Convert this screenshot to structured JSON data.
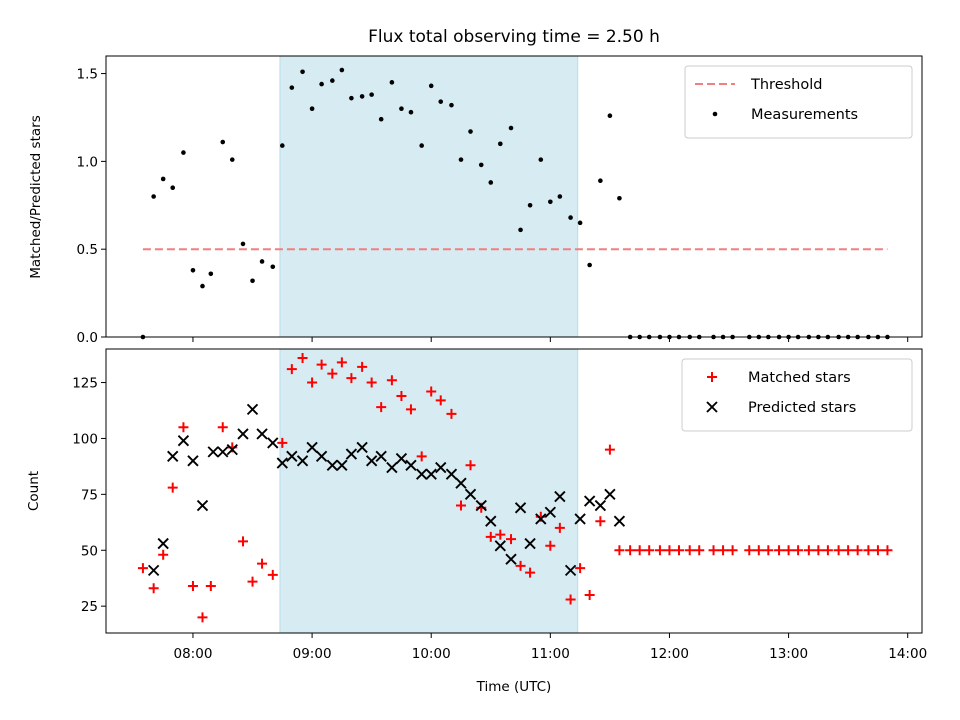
{
  "chart_data": [
    {
      "type": "scatter",
      "title": "Flux total observing time = 2.50 h",
      "xlabel": "",
      "ylabel": "Matched/Predicted stars",
      "xlim": [
        7.27,
        14.12
      ],
      "ylim": [
        0,
        1.6
      ],
      "yticks": [
        0,
        0.5,
        1.0,
        1.5
      ],
      "ytick_labels": [
        "0.0",
        "0.5",
        "1.0",
        "1.5"
      ],
      "xticks": [
        8,
        9,
        10,
        11,
        12,
        13,
        14
      ],
      "highlight_span": [
        8.73,
        11.23
      ],
      "legend_position": "upper right",
      "threshold": {
        "name": "Threshold",
        "color": "#f08080",
        "y": 0.5,
        "x_start": 7.58,
        "x_end": 13.83
      },
      "series": [
        {
          "name": "Measurements",
          "color": "#000000",
          "marker": "dot",
          "x": [
            7.58,
            7.67,
            7.75,
            7.83,
            7.92,
            8.0,
            8.08,
            8.15,
            8.25,
            8.33,
            8.42,
            8.5,
            8.58,
            8.67,
            8.75,
            8.83,
            8.92,
            9.0,
            9.08,
            9.17,
            9.25,
            9.33,
            9.42,
            9.5,
            9.58,
            9.67,
            9.75,
            9.83,
            9.92,
            10.0,
            10.08,
            10.17,
            10.25,
            10.33,
            10.42,
            10.5,
            10.58,
            10.67,
            10.75,
            10.83,
            10.92,
            11.0,
            11.08,
            11.17,
            11.25,
            11.33,
            11.42,
            11.5,
            11.58,
            11.67,
            11.75,
            11.83,
            11.92,
            12.0,
            12.08,
            12.17,
            12.25,
            12.37,
            12.45,
            12.53,
            12.67,
            12.75,
            12.83,
            12.92,
            13.0,
            13.08,
            13.17,
            13.25,
            13.33,
            13.42,
            13.5,
            13.58,
            13.67,
            13.75,
            13.83
          ],
          "y": [
            0.0,
            0.8,
            0.9,
            0.85,
            1.05,
            0.38,
            0.29,
            0.36,
            1.11,
            1.01,
            0.53,
            0.32,
            0.43,
            0.4,
            1.09,
            1.42,
            1.51,
            1.3,
            1.44,
            1.46,
            1.52,
            1.36,
            1.37,
            1.38,
            1.24,
            1.45,
            1.3,
            1.28,
            1.09,
            1.43,
            1.34,
            1.32,
            1.01,
            1.17,
            0.98,
            0.88,
            1.1,
            1.19,
            0.61,
            0.75,
            1.01,
            0.77,
            0.8,
            0.68,
            0.65,
            0.41,
            0.89,
            1.26,
            0.79,
            0.0,
            0.0,
            0.0,
            0.0,
            0.0,
            0.0,
            0.0,
            0.0,
            0.0,
            0.0,
            0.0,
            0.0,
            0.0,
            0.0,
            0.0,
            0.0,
            0.0,
            0.0,
            0.0,
            0.0,
            0.0,
            0.0,
            0.0,
            0.0,
            0.0,
            0.0
          ]
        }
      ]
    },
    {
      "type": "scatter",
      "title": "",
      "xlabel": "Time (UTC)",
      "ylabel": "Count",
      "xlim": [
        7.27,
        14.12
      ],
      "ylim": [
        13,
        140
      ],
      "yticks": [
        25,
        50,
        75,
        100,
        125
      ],
      "ytick_labels": [
        "25",
        "50",
        "75",
        "100",
        "125"
      ],
      "xticks": [
        8,
        9,
        10,
        11,
        12,
        13,
        14
      ],
      "xtick_labels": [
        "08:00",
        "09:00",
        "10:00",
        "11:00",
        "12:00",
        "13:00",
        "14:00"
      ],
      "highlight_span": [
        8.73,
        11.23
      ],
      "legend_position": "upper right",
      "series": [
        {
          "name": "Matched stars",
          "color": "#ff0000",
          "marker": "plus",
          "x": [
            7.58,
            7.67,
            7.75,
            7.83,
            7.92,
            8.0,
            8.08,
            8.15,
            8.25,
            8.33,
            8.42,
            8.5,
            8.58,
            8.67,
            8.75,
            8.83,
            8.92,
            9.0,
            9.08,
            9.17,
            9.25,
            9.33,
            9.42,
            9.5,
            9.58,
            9.67,
            9.75,
            9.83,
            9.92,
            10.0,
            10.08,
            10.17,
            10.25,
            10.33,
            10.42,
            10.5,
            10.58,
            10.67,
            10.75,
            10.83,
            10.92,
            11.0,
            11.08,
            11.17,
            11.25,
            11.33,
            11.42,
            11.5,
            11.58,
            11.67,
            11.75,
            11.83,
            11.92,
            12.0,
            12.08,
            12.17,
            12.25,
            12.37,
            12.45,
            12.53,
            12.67,
            12.75,
            12.83,
            12.92,
            13.0,
            13.08,
            13.17,
            13.25,
            13.33,
            13.42,
            13.5,
            13.58,
            13.67,
            13.75,
            13.83
          ],
          "y": [
            42,
            33,
            48,
            78,
            105,
            34,
            20,
            34,
            105,
            96,
            54,
            36,
            44,
            39,
            98,
            131,
            136,
            125,
            133,
            129,
            134,
            127,
            132,
            125,
            114,
            126,
            119,
            113,
            92,
            121,
            117,
            111,
            70,
            88,
            69,
            56,
            57,
            55,
            43,
            40,
            65,
            52,
            60,
            28,
            42,
            30,
            63,
            95,
            50,
            50,
            50,
            50,
            50,
            50,
            50,
            50,
            50,
            50,
            50,
            50,
            50,
            50,
            50,
            50,
            50,
            50,
            50,
            50,
            50,
            50,
            50,
            50,
            50,
            50,
            50
          ]
        },
        {
          "name": "Predicted stars",
          "color": "#000000",
          "marker": "x",
          "x": [
            7.67,
            7.75,
            7.83,
            7.92,
            8.0,
            8.08,
            8.17,
            8.25,
            8.33,
            8.42,
            8.5,
            8.58,
            8.67,
            8.75,
            8.83,
            8.92,
            9.0,
            9.08,
            9.17,
            9.25,
            9.33,
            9.42,
            9.5,
            9.58,
            9.67,
            9.75,
            9.83,
            9.92,
            10.0,
            10.08,
            10.17,
            10.25,
            10.33,
            10.42,
            10.5,
            10.58,
            10.67,
            10.75,
            10.83,
            10.92,
            11.0,
            11.08,
            11.17,
            11.25,
            11.33,
            11.42,
            11.5,
            11.58
          ],
          "y": [
            41,
            53,
            92,
            99,
            90,
            70,
            94,
            94,
            95,
            102,
            113,
            102,
            98,
            89,
            92,
            90,
            96,
            92,
            88,
            88,
            93,
            96,
            90,
            92,
            87,
            91,
            88,
            84,
            84,
            87,
            84,
            80,
            75,
            70,
            63,
            52,
            46,
            69,
            53,
            64,
            67,
            74,
            41,
            64,
            72,
            70,
            75,
            63
          ]
        }
      ]
    }
  ]
}
